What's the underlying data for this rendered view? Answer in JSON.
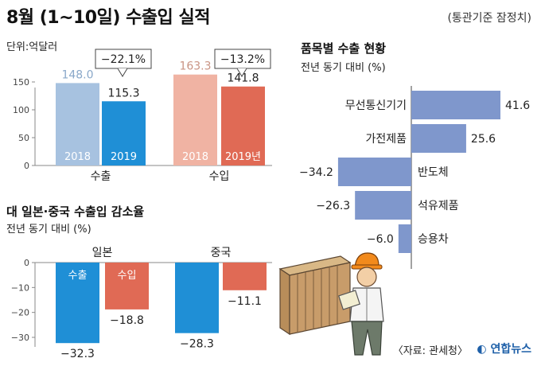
{
  "title": "8월 (1~10일) 수출입 실적",
  "note": "(통관기준 잠정치)",
  "source": "〈자료: 관세청〉",
  "logo": "연합뉴스",
  "colors": {
    "export_2018": "#a7c2e0",
    "export_2019": "#1f8fd6",
    "import_2018": "#f0b3a3",
    "import_2019": "#e06a55",
    "product_bar": "#7f97cc",
    "axis": "#888888"
  },
  "chart_data": [
    {
      "id": "performance",
      "type": "bar",
      "unit_label": "단위:억달러",
      "groups": [
        "수출",
        "수입"
      ],
      "series_names": [
        "2018",
        "2019"
      ],
      "import_2019_label": "2019년",
      "values": [
        [
          148.0,
          115.3
        ],
        [
          163.3,
          141.8
        ]
      ],
      "value_labels": [
        [
          "148.0",
          "115.3"
        ],
        [
          "163.3",
          "141.8"
        ]
      ],
      "change_callouts": [
        "−22.1%",
        "−13.2%"
      ],
      "yticks": [
        0,
        50,
        100,
        150
      ],
      "ylim": [
        0,
        170
      ]
    },
    {
      "id": "products",
      "type": "bar",
      "orientation": "horizontal",
      "title": "품목별 수출 현황",
      "subtitle": "전년 동기 대비 (%)",
      "categories": [
        "무선통신기기",
        "가전제품",
        "반도체",
        "석유제품",
        "승용차"
      ],
      "values": [
        41.6,
        25.6,
        -34.2,
        -26.3,
        -6.0
      ],
      "value_labels": [
        "41.6",
        "25.6",
        "−34.2",
        "−26.3",
        "−6.0"
      ]
    },
    {
      "id": "japan_china",
      "type": "bar",
      "title": "대 일본·중국 수출입 감소율",
      "subtitle": "전년 동기 대비 (%)",
      "groups": [
        "일본",
        "중국"
      ],
      "series_names": [
        "수출",
        "수입"
      ],
      "values": [
        [
          -32.3,
          -18.8
        ],
        [
          -28.3,
          -11.1
        ]
      ],
      "value_labels": [
        [
          "−32.3",
          "−18.8"
        ],
        [
          "−28.3",
          "−11.1"
        ]
      ],
      "yticks": [
        0,
        -10,
        -20,
        -30
      ],
      "ylim": [
        -35,
        0
      ]
    }
  ]
}
